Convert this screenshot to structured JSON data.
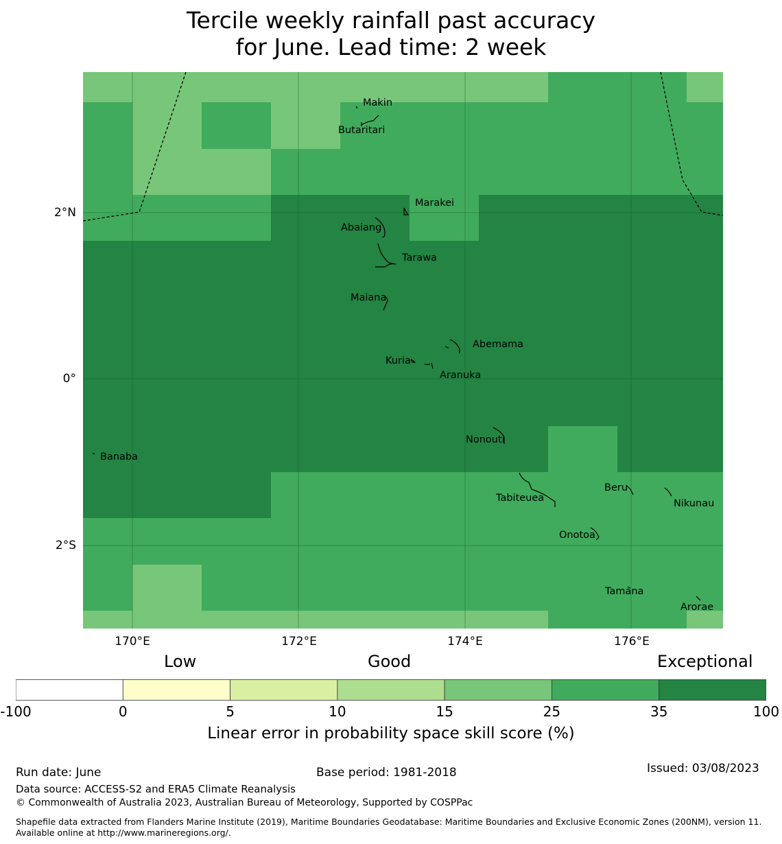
{
  "title": {
    "line1": "Tercile weekly rainfall past accuracy",
    "line2": "for June. Lead time: 2 week"
  },
  "map": {
    "lat_range": [
      -3.0,
      3.7
    ],
    "lon_range": [
      169.4,
      177.1
    ],
    "lat_ticks": [
      "2°N",
      "0°",
      "2°S"
    ],
    "lon_ticks": [
      "170°E",
      "172°E",
      "174°E",
      "176°E"
    ],
    "gridlines": true,
    "eez_boundary": "dashed",
    "places": [
      {
        "name": "Makin"
      },
      {
        "name": "Butaritari"
      },
      {
        "name": "Marakei"
      },
      {
        "name": "Abaiang"
      },
      {
        "name": "Tarawa"
      },
      {
        "name": "Maiana"
      },
      {
        "name": "Abemama"
      },
      {
        "name": "Kuria"
      },
      {
        "name": "Aranuka"
      },
      {
        "name": "Nonouti"
      },
      {
        "name": "Banaba"
      },
      {
        "name": "Tabiteuea"
      },
      {
        "name": "Beru"
      },
      {
        "name": "Nikunau"
      },
      {
        "name": "Onotoa"
      },
      {
        "name": "Tamana"
      },
      {
        "name": "Arorae"
      }
    ],
    "skill_categories": {
      "25-35": "#78c679",
      "35-100": "#41ab5d",
      "100": "#238443"
    }
  },
  "colorbar": {
    "headings": {
      "low": "Low",
      "good": "Good",
      "exceptional": "Exceptional"
    },
    "ticks": [
      "-100",
      "0",
      "5",
      "10",
      "15",
      "25",
      "35",
      "100"
    ],
    "colors": [
      "#ffffff",
      "#ffffcc",
      "#d9f0a3",
      "#addd8e",
      "#78c679",
      "#41ab5d",
      "#238443"
    ],
    "label": "Linear error in probability space skill score (%)"
  },
  "footer": {
    "run_date": "Run date: June",
    "base_period": "Base period: 1981-2018",
    "issued": "Issued: 03/08/2023",
    "data_source": "Data source: ACCESS-S2 and ERA5 Climate Reanalysis",
    "copyright": "© Commonwealth of Australia 2023, Australian Bureau of Meteorology, Supported by COSPPac",
    "shapefile": "Shapefile data extracted from Flanders Marine Institute (2019), Maritime Boundaries Geodatabase: Maritime Boundaries and Exclusive Economic Zones (200NM), version 11. Available online at http://www.marineregions.org/."
  }
}
